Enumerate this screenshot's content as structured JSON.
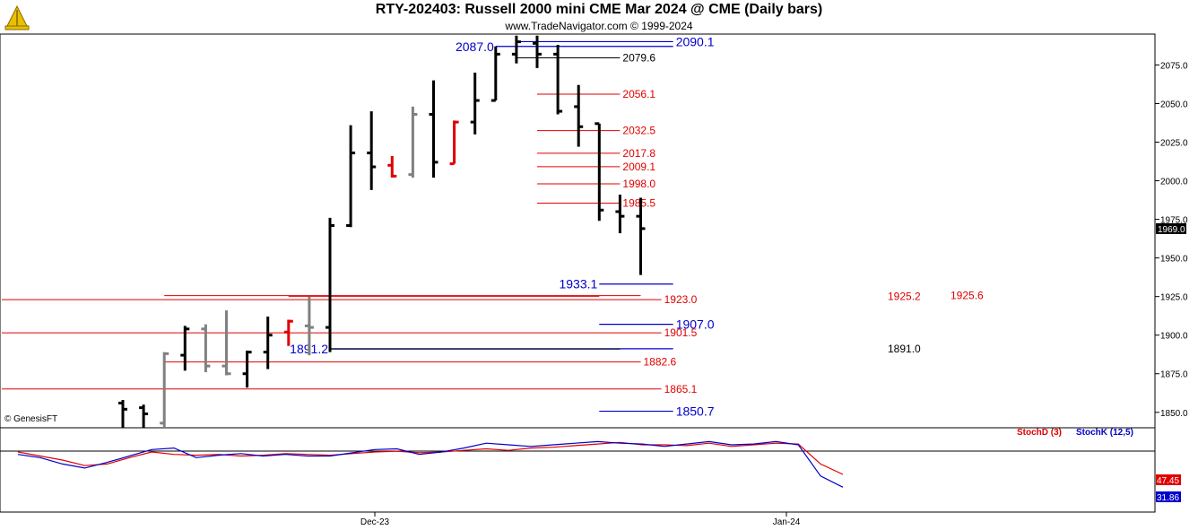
{
  "header": {
    "title": "RTY-202403:  Russell 2000 mini CME Mar 2024 @ CME  (Daily bars)",
    "subtitle": "www.TradeNavigator.com © 1999-2024"
  },
  "watermark": "© GenesisFT",
  "colors": {
    "price_bar": "#000000",
    "down_bar": "#e00000",
    "inside_bar": "#808080",
    "level_red": "#e00000",
    "level_blue": "#0000cc",
    "level_black": "#000000",
    "stoch_d": "#e00000",
    "stoch_k": "#0000cc"
  },
  "chart_data": {
    "type": "ohlc",
    "price_axis": {
      "min": 1840,
      "max": 2095,
      "ticks": [
        "1850.0",
        "1875.0",
        "1900.0",
        "1925.0",
        "1950.0",
        "1975.0",
        "2000.0",
        "2025.0",
        "2050.0",
        "2075.0"
      ],
      "current_price": "1969.0"
    },
    "x_labels": [
      "Dec-23",
      "Jan-24"
    ],
    "bars": [
      {
        "o": 1856,
        "h": 1858,
        "l": 1840,
        "c": 1852,
        "color": "black"
      },
      {
        "o": 1853,
        "h": 1855,
        "l": 1840,
        "c": 1849,
        "color": "black"
      },
      {
        "o": 1843,
        "h": 1889,
        "l": 1840,
        "c": 1888,
        "color": "gray"
      },
      {
        "o": 1887,
        "h": 1906,
        "l": 1877,
        "c": 1904,
        "color": "black"
      },
      {
        "o": 1904,
        "h": 1907,
        "l": 1876,
        "c": 1880,
        "color": "gray"
      },
      {
        "o": 1880,
        "h": 1916,
        "l": 1874,
        "c": 1875,
        "color": "gray"
      },
      {
        "o": 1875,
        "h": 1890,
        "l": 1866,
        "c": 1889,
        "color": "black"
      },
      {
        "o": 1889,
        "h": 1912,
        "l": 1878,
        "c": 1900,
        "color": "black"
      },
      {
        "o": 1902,
        "h": 1910,
        "l": 1893,
        "c": 1909,
        "color": "red"
      },
      {
        "o": 1906,
        "h": 1925,
        "l": 1887,
        "c": 1905,
        "color": "gray"
      },
      {
        "o": 1905,
        "h": 1976,
        "l": 1889,
        "c": 1971,
        "color": "black"
      },
      {
        "o": 1971,
        "h": 2036,
        "l": 1970,
        "c": 2018,
        "color": "black"
      },
      {
        "o": 2018,
        "h": 2045,
        "l": 1994,
        "c": 2009,
        "color": "black"
      },
      {
        "o": 2010,
        "h": 2016,
        "l": 2002,
        "c": 2003,
        "color": "red"
      },
      {
        "o": 2004,
        "h": 2048,
        "l": 2002,
        "c": 2043,
        "color": "gray"
      },
      {
        "o": 2043,
        "h": 2065,
        "l": 2002,
        "c": 2012,
        "color": "black"
      },
      {
        "o": 2011,
        "h": 2039,
        "l": 2011,
        "c": 2038,
        "color": "red"
      },
      {
        "o": 2038,
        "h": 2070,
        "l": 2030,
        "c": 2052,
        "color": "black"
      },
      {
        "o": 2052,
        "h": 2087,
        "l": 2052,
        "c": 2082,
        "color": "black"
      },
      {
        "o": 2082,
        "h": 2094,
        "l": 2076,
        "c": 2090,
        "color": "black"
      },
      {
        "o": 2089,
        "h": 2094,
        "l": 2073,
        "c": 2082,
        "color": "black"
      },
      {
        "o": 2082,
        "h": 2088,
        "l": 2043,
        "c": 2045,
        "color": "black"
      },
      {
        "o": 2048,
        "h": 2062,
        "l": 2022,
        "c": 2035,
        "color": "black"
      },
      {
        "o": 2037,
        "h": 2037,
        "l": 1974,
        "c": 1981,
        "color": "black"
      },
      {
        "o": 1980,
        "h": 1991,
        "l": 1966,
        "c": 1977,
        "color": "black"
      },
      {
        "o": 1977,
        "h": 1989,
        "l": 1939,
        "c": 1969,
        "color": "black"
      }
    ],
    "levels": [
      {
        "label": "2090.1",
        "value": 2090.1,
        "color": "blue",
        "size": "large",
        "from_bar": 19,
        "to_bar": 27
      },
      {
        "label": "2087.0",
        "value": 2087.0,
        "color": "blue",
        "size": "large",
        "from_bar": 18,
        "to_bar": 27,
        "label_left": true
      },
      {
        "label": "2079.6",
        "value": 2079.6,
        "color": "black",
        "size": "small",
        "from_bar": 19,
        "to_bar": 24
      },
      {
        "label": "2056.1",
        "value": 2056.1,
        "color": "red",
        "size": "small",
        "from_bar": 20,
        "to_bar": 24
      },
      {
        "label": "2032.5",
        "value": 2032.5,
        "color": "red",
        "size": "small",
        "from_bar": 20,
        "to_bar": 24
      },
      {
        "label": "2017.8",
        "value": 2017.8,
        "color": "red",
        "size": "small",
        "from_bar": 20,
        "to_bar": 24
      },
      {
        "label": "2009.1",
        "value": 2009.1,
        "color": "red",
        "size": "small",
        "from_bar": 20,
        "to_bar": 24
      },
      {
        "label": "1998.0",
        "value": 1998.0,
        "color": "red",
        "size": "small",
        "from_bar": 20,
        "to_bar": 24
      },
      {
        "label": "1985.5",
        "value": 1985.5,
        "color": "red",
        "size": "small",
        "from_bar": 20,
        "to_bar": 24
      },
      {
        "label": "1933.1",
        "value": 1933.1,
        "color": "blue",
        "size": "large",
        "from_bar": 23,
        "to_bar": 27,
        "label_left": true
      },
      {
        "label": "1925.2",
        "value": 1925.2,
        "color": "red",
        "size": "small",
        "from_bar": 8,
        "to_bar": 23
      },
      {
        "label": "1925.6",
        "value": 1925.6,
        "color": "red",
        "size": "small",
        "from_bar": 2,
        "to_bar": 25
      },
      {
        "label": "1923.0",
        "value": 1923.0,
        "color": "red",
        "size": "small",
        "from_bar": -12,
        "to_bar": 26
      },
      {
        "label": "1907.0",
        "value": 1907.0,
        "color": "blue",
        "size": "large",
        "from_bar": 23,
        "to_bar": 27
      },
      {
        "label": "1901.5",
        "value": 1901.5,
        "color": "red",
        "size": "small",
        "from_bar": -12,
        "to_bar": 26
      },
      {
        "label": "1891.2",
        "value": 1891.2,
        "color": "blue",
        "size": "large",
        "from_bar": 10,
        "to_bar": 27,
        "label_left": true
      },
      {
        "label": "1891.0",
        "value": 1891.0,
        "color": "black",
        "size": "small",
        "from_bar": 10,
        "to_bar": 24
      },
      {
        "label": "1882.6",
        "value": 1882.6,
        "color": "red",
        "size": "small",
        "from_bar": 2,
        "to_bar": 25
      },
      {
        "label": "1865.1",
        "value": 1865.1,
        "color": "red",
        "size": "small",
        "from_bar": -12,
        "to_bar": 26
      },
      {
        "label": "1850.7",
        "value": 1850.7,
        "color": "blue",
        "size": "large",
        "from_bar": 23,
        "to_bar": 27
      }
    ],
    "indicator": {
      "legend": [
        "StochD (3)",
        "StochK (12,5)"
      ],
      "values_label": [
        "47.45",
        "31.86"
      ],
      "stoch_d": [
        75,
        70,
        65,
        58,
        60,
        68,
        75,
        72,
        71,
        72,
        70,
        71,
        73,
        72,
        71,
        73,
        75,
        76,
        74,
        75,
        77,
        79,
        77,
        80,
        81,
        83,
        85,
        87,
        84,
        84,
        83,
        86,
        82,
        84,
        86,
        85,
        60,
        47
      ],
      "stoch_k": [
        72,
        68,
        60,
        55,
        62,
        70,
        78,
        80,
        68,
        71,
        73,
        70,
        72,
        70,
        70,
        74,
        78,
        79,
        72,
        75,
        80,
        86,
        84,
        82,
        84,
        86,
        88,
        86,
        85,
        82,
        85,
        88,
        84,
        85,
        88,
        84,
        45,
        31
      ]
    }
  }
}
